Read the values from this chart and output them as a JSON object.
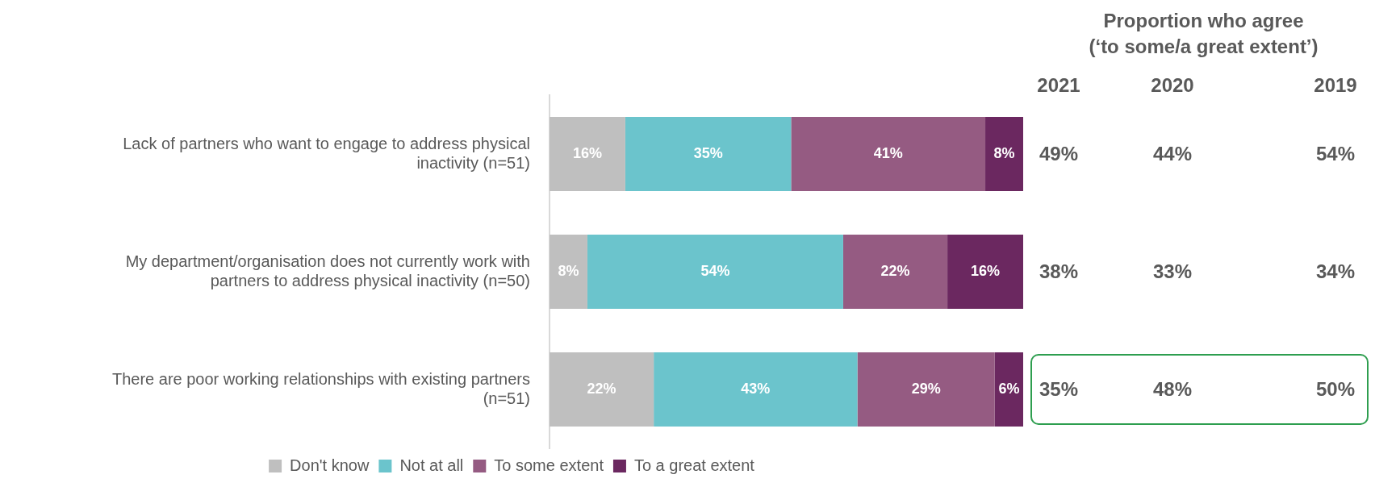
{
  "chart_data": {
    "type": "bar",
    "orientation": "horizontal",
    "stacked": true,
    "legend": "bottom",
    "tick_labels": "y",
    "categories": [
      "Lack of partners who want to engage to address physical inactivity (n=51)",
      "My department/organisation does not currently work with partners to address physical inactivity (n=50)",
      "There are poor working relationships with existing partners (n=51)"
    ],
    "series": [
      {
        "name": "Don't know",
        "color": "#bfbfbf",
        "values": [
          16,
          8,
          22
        ],
        "value_labels": [
          "16%",
          "8%",
          "22%"
        ]
      },
      {
        "name": "Not at all",
        "color": "#6bc4cc",
        "values": [
          35,
          54,
          43
        ],
        "value_labels": [
          "35%",
          "54%",
          "43%"
        ]
      },
      {
        "name": "To some extent",
        "color": "#955b82",
        "values": [
          41,
          22,
          29
        ],
        "value_labels": [
          "41%",
          "22%",
          "29%"
        ]
      },
      {
        "name": "To a great extent",
        "color": "#6b2860",
        "values": [
          8,
          16,
          6
        ],
        "value_labels": [
          "8%",
          "16%",
          "6%"
        ]
      }
    ],
    "annotations": [
      "Proportion who agree",
      "(‘to some/a great extent’)",
      "2021",
      "2020",
      "2019",
      "49%",
      "44%",
      "54%",
      "38%",
      "33%",
      "34%",
      "35%",
      "48%",
      "50%"
    ]
  }
}
